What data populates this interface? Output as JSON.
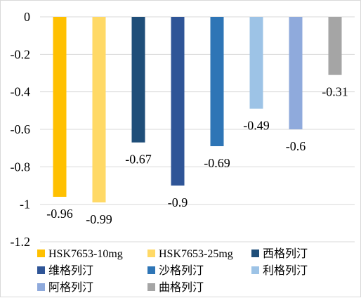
{
  "chart_data": {
    "type": "bar",
    "title": "",
    "xlabel": "",
    "ylabel": "",
    "ylim": [
      -1.2,
      0
    ],
    "yticks": [
      0,
      -0.2,
      -0.4,
      -0.6,
      -0.8,
      -1,
      -1.2
    ],
    "ytick_labels": [
      "0",
      "-0.2",
      "-0.4",
      "-0.6",
      "-0.8",
      "-1",
      "-1.2"
    ],
    "grid": "horizontal",
    "legend_position": "bottom",
    "categories": [
      "HSK7653-10mg",
      "HSK7653-25mg",
      "西格列汀",
      "维格列汀",
      "沙格列汀",
      "利格列汀",
      "阿格列汀",
      "曲格列汀"
    ],
    "values": [
      -0.96,
      -0.99,
      -0.67,
      -0.9,
      -0.69,
      -0.49,
      -0.6,
      -0.31
    ],
    "value_labels": [
      "-0.96",
      "-0.99",
      "-0.67",
      "-0.9",
      "-0.69",
      "-0.49",
      "-0.6",
      "-0.31"
    ],
    "colors": [
      "#FFC000",
      "#FFD966",
      "#1F4E79",
      "#2F5597",
      "#2E75B6",
      "#9DC3E6",
      "#8FAADC",
      "#A5A5A5"
    ]
  }
}
